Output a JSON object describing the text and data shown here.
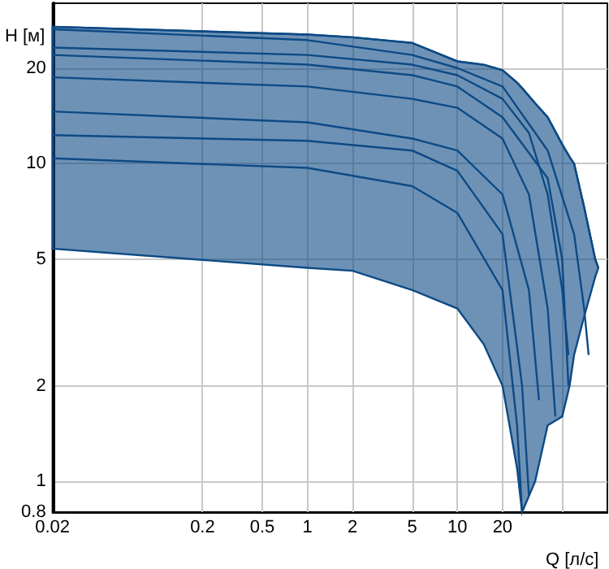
{
  "chart_data": {
    "type": "line",
    "xlabel": "Q [л/с]",
    "ylabel": "H [м]",
    "log": "xy",
    "grid": true,
    "marker": "none",
    "xlim": [
      0.02,
      100
    ],
    "xticks": [
      0.02,
      0.2,
      0.5,
      1,
      2,
      5,
      10,
      20,
      {
        "value": 50,
        "label": null
      }
    ],
    "ylim": [
      0.8,
      32
    ],
    "yticks": [
      0.8,
      1,
      2,
      5,
      10,
      20
    ],
    "series": [
      {
        "color": "#0d4a85",
        "x": [
          0.02,
          1,
          2,
          5,
          10,
          15,
          20,
          25,
          27,
          33,
          40,
          50,
          56,
          60,
          70,
          83,
          87
        ],
        "values": [
          27,
          25.5,
          25,
          24,
          21,
          20.5,
          19.7,
          18,
          17.3,
          15.5,
          14,
          11.5,
          10.5,
          10,
          7.3,
          5,
          4.7
        ],
        "upper": [
          27,
          25.5,
          25,
          24,
          21,
          20.5,
          19.7,
          18,
          17.3,
          15.5,
          14,
          11.5,
          10.5,
          10,
          7.3,
          5,
          4.7
        ],
        "lower": [
          5.4,
          4.7,
          4.6,
          4,
          3.5,
          2.7,
          2,
          1.1,
          0.8,
          1,
          1.5,
          1.6,
          2,
          2.5,
          3.3,
          4.4,
          4.7
        ]
      },
      {
        "color": "#0d4a85",
        "x": [
          0.02,
          1,
          5,
          10,
          20,
          40,
          60,
          70,
          75
        ],
        "values": [
          26.5,
          24.5,
          22,
          20,
          17.5,
          11,
          6,
          3.5,
          2.5
        ]
      },
      {
        "color": "#0d4a85",
        "x": [
          0.02,
          1,
          5,
          10,
          20,
          30,
          40,
          50,
          55
        ],
        "values": [
          23.2,
          22,
          20.5,
          19,
          16,
          12.5,
          8,
          4,
          2.5
        ]
      },
      {
        "color": "#0d4a85",
        "x": [
          0.02,
          1,
          5,
          10,
          20,
          40,
          50,
          55
        ],
        "values": [
          22,
          20.5,
          19,
          17.5,
          14,
          9,
          5,
          2
        ]
      },
      {
        "color": "#0d4a85",
        "x": [
          0.02,
          1,
          5,
          10,
          20,
          30,
          40,
          45
        ],
        "values": [
          18.7,
          17.5,
          16,
          15,
          12,
          8,
          3.5,
          1.6
        ]
      },
      {
        "color": "#0d4a85",
        "x": [
          0.02,
          1,
          5,
          10,
          20,
          30,
          35
        ],
        "values": [
          14.6,
          13.5,
          12,
          11,
          8,
          4,
          1.8
        ]
      },
      {
        "color": "#0d4a85",
        "x": [
          0.02,
          1,
          5,
          10,
          20,
          27,
          30
        ],
        "values": [
          12.3,
          11.8,
          11,
          9.5,
          6,
          2,
          0.9
        ]
      },
      {
        "color": "#0d4a85",
        "x": [
          0.02,
          1,
          5,
          10,
          20,
          25,
          27
        ],
        "values": [
          10.4,
          9.7,
          8.5,
          7,
          4,
          1.5,
          0.8
        ]
      }
    ]
  }
}
